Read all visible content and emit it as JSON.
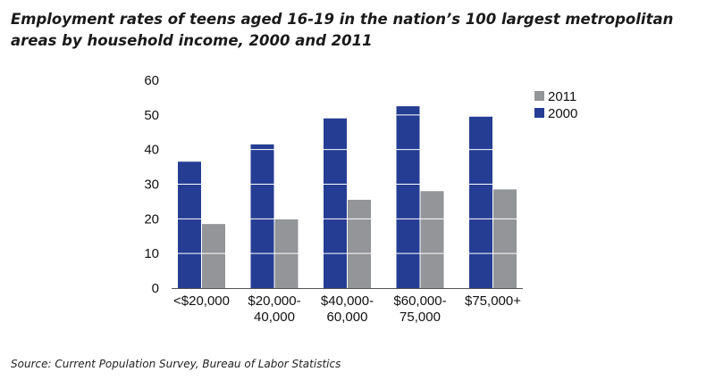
{
  "title": "Employment rates of teens aged 16-19 in the nation’s 100 largest metropolitan areas by household income, 2000 and 2011",
  "source": "Source: Current Population Survey, Bureau of Labor Statistics",
  "colors": {
    "s2000": "#253d93",
    "s2011": "#939598"
  },
  "chart_data": {
    "type": "bar",
    "title": "Employment rates of teens aged 16-19 in the nation’s 100 largest metropolitan areas by household income, 2000 and 2011",
    "categories": [
      [
        "<$20,000"
      ],
      [
        "$20,000-",
        "40,000"
      ],
      [
        "$40,000-",
        "60,000"
      ],
      [
        "$60,000-",
        "75,000"
      ],
      [
        "$75,000+"
      ]
    ],
    "series": [
      {
        "name": "2000",
        "values": [
          36.5,
          41.5,
          49,
          52.5,
          49.5
        ]
      },
      {
        "name": "2011",
        "values": [
          18.5,
          20,
          25.5,
          28,
          28.5
        ]
      }
    ],
    "ylim": [
      0,
      60
    ],
    "yticks": [
      0,
      10,
      20,
      30,
      40,
      50,
      60
    ],
    "legend": {
      "position": "top-right",
      "order": [
        "2011",
        "2000"
      ]
    },
    "grid": "white lines across bars"
  }
}
